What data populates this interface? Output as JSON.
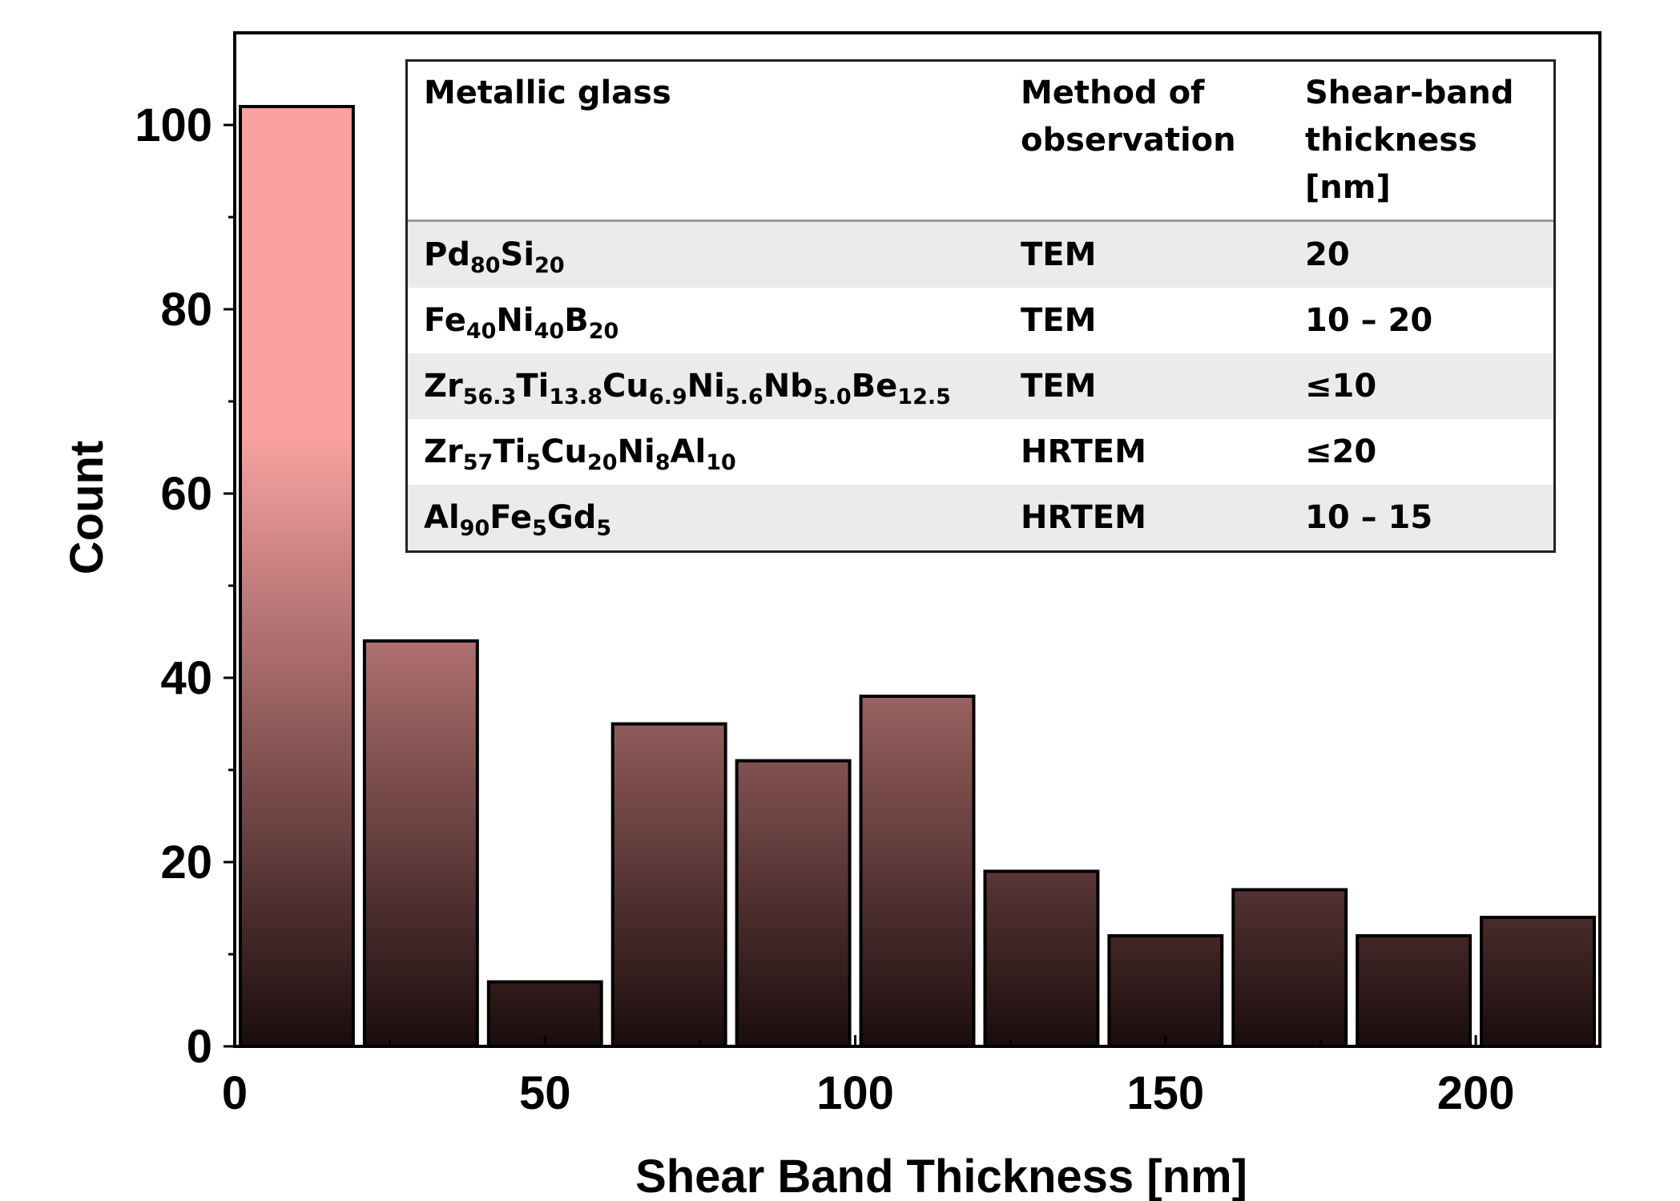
{
  "chart_data": {
    "type": "bar",
    "xlabel": "Shear Band Thickness [nm]",
    "ylabel": "Count",
    "xlim": [
      0,
      220
    ],
    "ylim": [
      0,
      110
    ],
    "x_ticks": [
      "0",
      "50",
      "100",
      "150",
      "200"
    ],
    "y_ticks": [
      "0",
      "20",
      "40",
      "60",
      "80",
      "100"
    ],
    "bins": [
      [
        0,
        20
      ],
      [
        20,
        40
      ],
      [
        40,
        60
      ],
      [
        60,
        80
      ],
      [
        80,
        100
      ],
      [
        100,
        120
      ],
      [
        120,
        140
      ],
      [
        140,
        160
      ],
      [
        160,
        180
      ],
      [
        180,
        200
      ],
      [
        200,
        220
      ]
    ],
    "values": [
      102,
      44,
      7,
      35,
      31,
      38,
      19,
      12,
      17,
      12,
      14
    ],
    "colors": {
      "bar_top": "#f8a1a0",
      "bar_bottom": "#1a0c0c",
      "edge": "#000000"
    },
    "grid": false
  },
  "table": {
    "headers": [
      "Metallic glass",
      "Method of observation",
      "Shear-band thickness [nm]"
    ],
    "rows": [
      {
        "glass": "Pd80Si20",
        "glass_parts": [
          [
            "Pd",
            "80"
          ],
          [
            "Si",
            "20"
          ]
        ],
        "method": "TEM",
        "thickness": "20"
      },
      {
        "glass": "Fe40Ni40B20",
        "glass_parts": [
          [
            "Fe",
            "40"
          ],
          [
            "Ni",
            "40"
          ],
          [
            "B",
            "20"
          ]
        ],
        "method": "TEM",
        "thickness": "10 – 20"
      },
      {
        "glass": "Zr56.3Ti13.8Cu6.9Ni5.6Nb5.0Be12.5",
        "glass_parts": [
          [
            "Zr",
            "56.3"
          ],
          [
            "Ti",
            "13.8"
          ],
          [
            "Cu",
            "6.9"
          ],
          [
            "Ni",
            "5.6"
          ],
          [
            "Nb",
            "5.0"
          ],
          [
            "Be",
            "12.5"
          ]
        ],
        "method": "TEM",
        "thickness": "≤10"
      },
      {
        "glass": "Zr57Ti5Cu20Ni8Al10",
        "glass_parts": [
          [
            "Zr",
            "57"
          ],
          [
            "Ti",
            "5"
          ],
          [
            "Cu",
            "20"
          ],
          [
            "Ni",
            "8"
          ],
          [
            "Al",
            "10"
          ]
        ],
        "method": "HRTEM",
        "thickness": "≤20"
      },
      {
        "glass": "Al90Fe5Gd5",
        "glass_parts": [
          [
            "Al",
            "90"
          ],
          [
            "Fe",
            "5"
          ],
          [
            "Gd",
            "5"
          ]
        ],
        "method": "HRTEM",
        "thickness": "10 – 15"
      }
    ]
  }
}
